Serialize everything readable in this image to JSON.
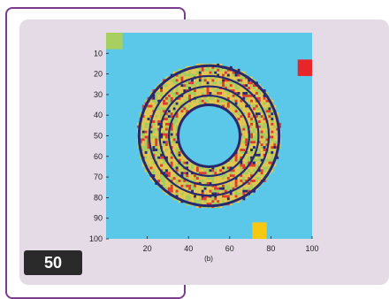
{
  "page": {
    "number": "50"
  },
  "chart_data": {
    "type": "heatmap",
    "caption": "(b)",
    "x": {
      "range": [
        0,
        100
      ],
      "ticks": [
        20,
        40,
        60,
        80,
        100
      ]
    },
    "y": {
      "range": [
        0,
        100
      ],
      "ticks": [
        10,
        20,
        30,
        40,
        50,
        60,
        70,
        80,
        90,
        100
      ],
      "inverted": true
    },
    "background_color": "#5bc8ea",
    "ring": {
      "center": [
        50,
        50
      ],
      "inner_radius": 15,
      "outer_radius": 35,
      "boundaries": [
        15,
        19.5,
        24,
        29,
        34
      ],
      "boundary_color": "#28286e",
      "fill_colors": [
        "#e6c64c",
        "#a8cc5a",
        "#e23a2a",
        "#28286e"
      ]
    },
    "corner_squares": [
      {
        "name": "top-left",
        "color": "#a8d060",
        "x": [
          0,
          8
        ],
        "y": [
          0,
          8
        ]
      },
      {
        "name": "right",
        "color": "#e8262a",
        "x": [
          93,
          100
        ],
        "y": [
          13,
          21
        ]
      },
      {
        "name": "bottom",
        "color": "#f6c812",
        "x": [
          71,
          78
        ],
        "y": [
          92,
          100
        ]
      }
    ]
  }
}
